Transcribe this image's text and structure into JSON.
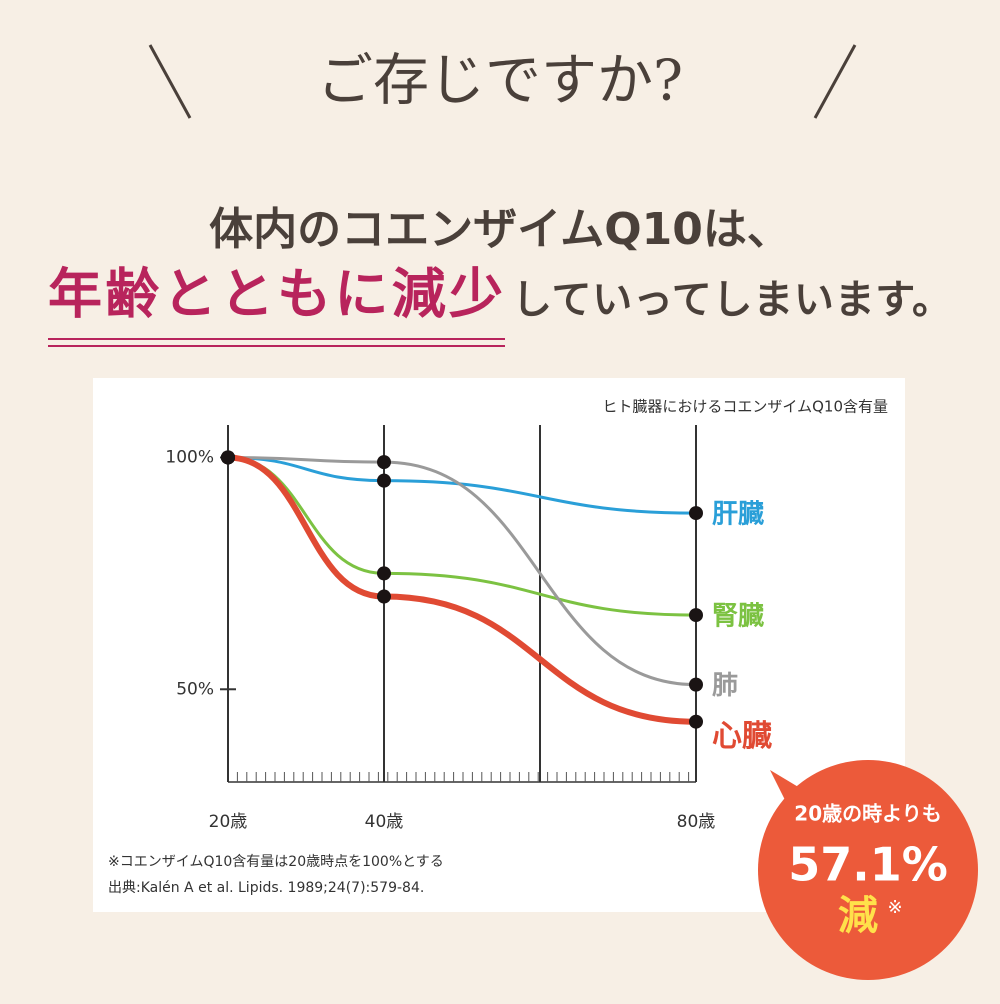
{
  "header": {
    "title": "ご存じですか?",
    "line1": "体内のコエンザイムQ10は、",
    "highlight": "年齢とともに減少",
    "line2": "していってしまいます。"
  },
  "chart_data": {
    "type": "line",
    "title": "ヒト臓器におけるコエンザイムQ10含有量",
    "x": [
      20,
      40,
      80
    ],
    "xlim": [
      20,
      80
    ],
    "xticks": [
      {
        "value": 20,
        "label": "20歳"
      },
      {
        "value": 40,
        "label": "40歳"
      },
      {
        "value": 80,
        "label": "80歳"
      }
    ],
    "ylim": [
      30,
      107
    ],
    "yticks": [
      {
        "value": 100,
        "label": "100%"
      },
      {
        "value": 50,
        "label": "50%"
      }
    ],
    "series": [
      {
        "name": "肝臓",
        "color": "#2a9fd8",
        "values": [
          100,
          95,
          88
        ]
      },
      {
        "name": "腎臓",
        "color": "#7cc242",
        "values": [
          100,
          75,
          66
        ]
      },
      {
        "name": "肺",
        "color": "#9a9a9a",
        "values": [
          100,
          99,
          51
        ]
      },
      {
        "name": "心臓",
        "color": "#e04a33",
        "values": [
          100,
          70,
          43
        ]
      }
    ],
    "notes": [
      "※コエンザイムQ10含有量は20歳時点を100%とする",
      "出典:Kalén A et al. Lipids. 1989;24(7):579-84."
    ]
  },
  "badge": {
    "line1": "20歳の時よりも",
    "value": "57.1%",
    "line3": "減",
    "mark": "※"
  }
}
